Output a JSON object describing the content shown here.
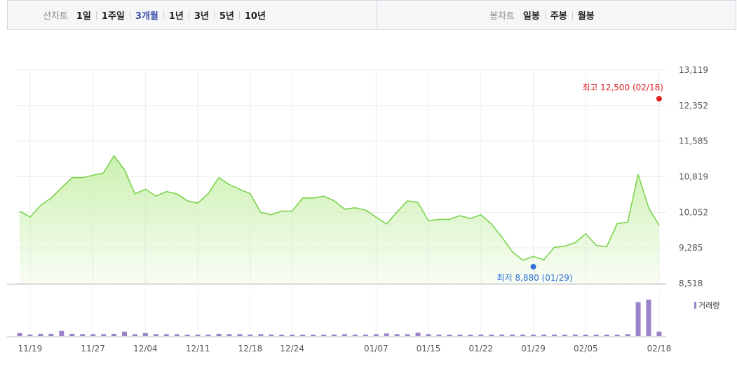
{
  "line_chart_tabs": {
    "label": "선차트",
    "options": [
      "1일",
      "1주일",
      "3개월",
      "1년",
      "3년",
      "5년",
      "10년"
    ],
    "selected": "3개월"
  },
  "candle_chart_tabs": {
    "label": "봉차트",
    "options": [
      "일봉",
      "주봉",
      "월봉"
    ]
  },
  "colors": {
    "line": "#7bd34c",
    "area_top": "#c9f0ac",
    "max_marker": "#e02020",
    "min_marker": "#2f6fd6",
    "volume": "#9b83c8",
    "selected_tab": "#3b50a5"
  },
  "annotations": {
    "max_text": "최고 12,500 (02/18)",
    "min_text": "최저 8,880 (01/29)"
  },
  "volume_legend": "거래량",
  "chart_data": {
    "type": "area",
    "y_ticks": [
      "13,119",
      "12,352",
      "11,585",
      "10,819",
      "10,052",
      "9,285",
      "8,518"
    ],
    "ylim": [
      8518,
      13119
    ],
    "x_tick_labels": [
      "11/19",
      "11/27",
      "12/04",
      "12/11",
      "12/18",
      "12/24",
      "01/07",
      "01/15",
      "01/22",
      "01/29",
      "02/05",
      "02/18"
    ],
    "x_tick_index": [
      1,
      7,
      12,
      17,
      22,
      26,
      34,
      39,
      44,
      49,
      54,
      61
    ],
    "grid": true,
    "series": [
      {
        "values": [
          10080,
          9950,
          10200,
          10360,
          10580,
          10800,
          10800,
          10850,
          10900,
          11270,
          10970,
          10450,
          10550,
          10400,
          10500,
          10450,
          10300,
          10250,
          10460,
          10800,
          10650,
          10550,
          10450,
          10050,
          10000,
          10080,
          10080,
          10360,
          10360,
          10400,
          10300,
          10120,
          10150,
          10100,
          9950,
          9800,
          10060,
          10300,
          10260,
          9870,
          9900,
          9900,
          9980,
          9920,
          10000,
          9800,
          9520,
          9200,
          9020,
          9100,
          9030,
          9300,
          9320,
          9400,
          9590,
          9340,
          9310,
          9810,
          9840,
          10870,
          10150,
          9770
        ]
      }
    ],
    "max_point": {
      "index": 61,
      "value": 12500,
      "date": "02/18"
    },
    "min_point": {
      "index": 49,
      "value": 8880,
      "date": "01/29"
    },
    "volume": {
      "label": "거래량",
      "values": [
        0.08,
        0.04,
        0.06,
        0.06,
        0.14,
        0.06,
        0.05,
        0.05,
        0.05,
        0.06,
        0.12,
        0.05,
        0.08,
        0.05,
        0.05,
        0.05,
        0.03,
        0.03,
        0.03,
        0.06,
        0.05,
        0.05,
        0.04,
        0.05,
        0.03,
        0.03,
        0.03,
        0.03,
        0.03,
        0.03,
        0.04,
        0.05,
        0.04,
        0.04,
        0.05,
        0.07,
        0.05,
        0.05,
        0.09,
        0.05,
        0.03,
        0.03,
        0.03,
        0.03,
        0.03,
        0.03,
        0.04,
        0.04,
        0.03,
        0.03,
        0.03,
        0.03,
        0.03,
        0.03,
        0.03,
        0.03,
        0.03,
        0.03,
        0.05,
        0.93,
        1.0,
        0.12
      ]
    }
  }
}
